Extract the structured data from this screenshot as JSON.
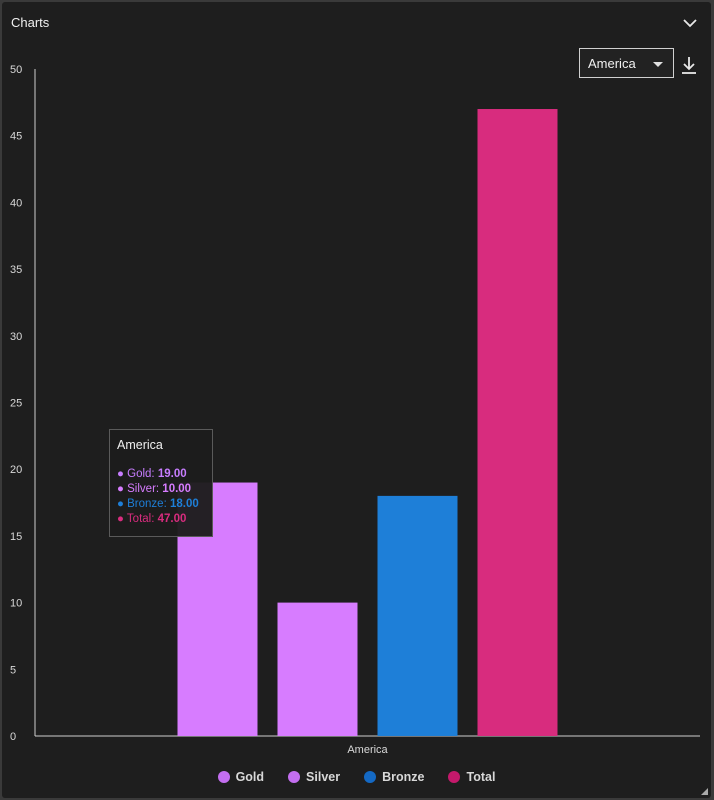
{
  "panel": {
    "title": "Charts"
  },
  "controls": {
    "region_selected": "America"
  },
  "icons": {
    "collapse": "chevron-down-icon",
    "download": "download-icon"
  },
  "tooltip": {
    "title": "America",
    "rows": [
      {
        "label": "Gold:",
        "value": "19.00",
        "color": "#c77dff"
      },
      {
        "label": "Silver:",
        "value": "10.00",
        "color": "#d77cff"
      },
      {
        "label": "Bronze:",
        "value": "18.00",
        "color": "#1e7fd8"
      },
      {
        "label": "Total:",
        "value": "47.00",
        "color": "#d82c7e"
      }
    ]
  },
  "chart_data": {
    "type": "bar",
    "categories": [
      "America"
    ],
    "series": [
      {
        "name": "Gold",
        "values": [
          19
        ],
        "color": "#d77cff"
      },
      {
        "name": "Silver",
        "values": [
          10
        ],
        "color": "#d77cff"
      },
      {
        "name": "Bronze",
        "values": [
          18
        ],
        "color": "#1e7fd8"
      },
      {
        "name": "Total",
        "values": [
          47
        ],
        "color": "#d82c7e"
      }
    ],
    "ylim": [
      0,
      50
    ],
    "yticks": [
      "0",
      "5",
      "10",
      "15",
      "20",
      "25",
      "30",
      "35",
      "40",
      "45",
      "50"
    ],
    "legend_position": "bottom",
    "grid": false
  }
}
